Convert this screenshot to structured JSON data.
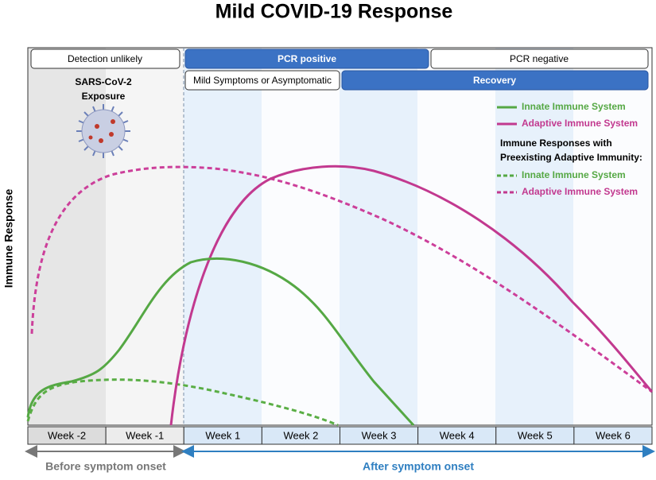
{
  "title": "Mild COVID-19 Response",
  "y_axis_label": "Immune Response",
  "status_bars": {
    "row1": [
      "Detection unlikely",
      "PCR positive",
      "PCR negative"
    ],
    "row2": [
      "Mild Symptoms or Asymptomatic",
      "Recovery"
    ]
  },
  "exposure": [
    "SARS-CoV-2",
    "Exposure"
  ],
  "legend": {
    "solid": [
      "Innate Immune System",
      "Adaptive Immune System"
    ],
    "heading": [
      "Immune Responses with",
      "Preexisting Adaptive Immunity:"
    ],
    "dashed": [
      "Innate Immune System",
      "Adaptive Immune System"
    ]
  },
  "weeks": [
    "Week -2",
    "Week -1",
    "Week 1",
    "Week 2",
    "Week 3",
    "Week 4",
    "Week 5",
    "Week 6"
  ],
  "phases": [
    "Before symptom onset",
    "After symptom onset"
  ]
}
